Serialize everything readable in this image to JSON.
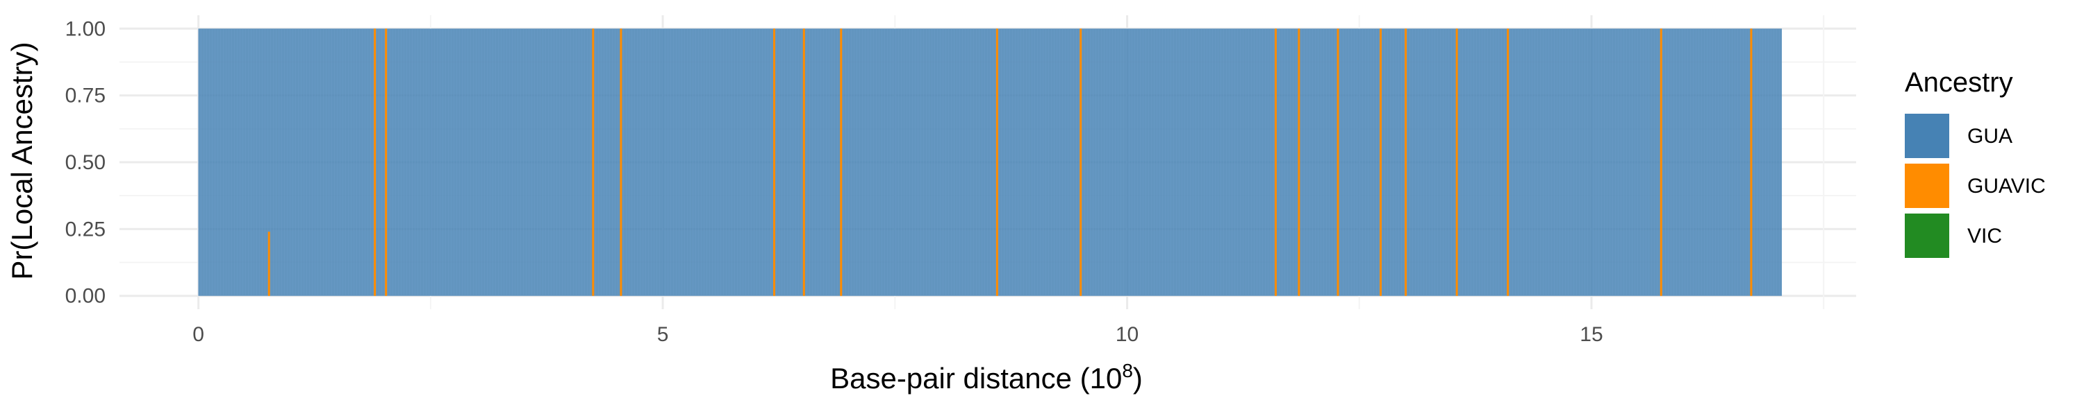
{
  "chart_data": {
    "type": "bar",
    "title": "",
    "xlabel": "Base-pair distance",
    "xlabel_unit_base": "10",
    "xlabel_unit_exp": "8",
    "ylabel": "Pr(Local Ancestry)",
    "xlim": [
      -0.85,
      17.85
    ],
    "ylim": [
      -0.05,
      1.05
    ],
    "x_ticks": [
      0,
      5,
      10,
      15
    ],
    "x_tick_labels": [
      "0",
      "5",
      "10",
      "15"
    ],
    "y_ticks": [
      0,
      0.25,
      0.5,
      0.75,
      1.0
    ],
    "y_tick_labels": [
      "0.00",
      "0.25",
      "0.50",
      "0.75",
      "1.00"
    ],
    "grid": true,
    "legend": {
      "title": "Ancestry",
      "position": "right",
      "entries": [
        "GUA",
        "GUAVIC",
        "VIC"
      ]
    },
    "colors": {
      "GUA": "#4682b4",
      "GUAVIC": "#ff8c00",
      "VIC": "#228b22"
    },
    "x_range": [
      0,
      17.05
    ],
    "series": [
      {
        "name": "GUA",
        "description_value": "dominant ancestry, probability ~1.0 across the full range"
      },
      {
        "name": "GUAVIC",
        "segments_x": [
          0.76,
          1.9,
          2.02,
          4.25,
          4.55,
          6.2,
          6.52,
          6.92,
          8.6,
          9.5,
          11.6,
          11.85,
          12.27,
          12.73,
          13.0,
          13.55,
          14.1,
          15.75,
          16.72
        ],
        "values": [
          0.24,
          1,
          1,
          1,
          1,
          1,
          1,
          1,
          1,
          1,
          1,
          1,
          1,
          1,
          1,
          1,
          1,
          1,
          1
        ]
      },
      {
        "name": "VIC",
        "segments_x": [],
        "values": []
      }
    ]
  }
}
